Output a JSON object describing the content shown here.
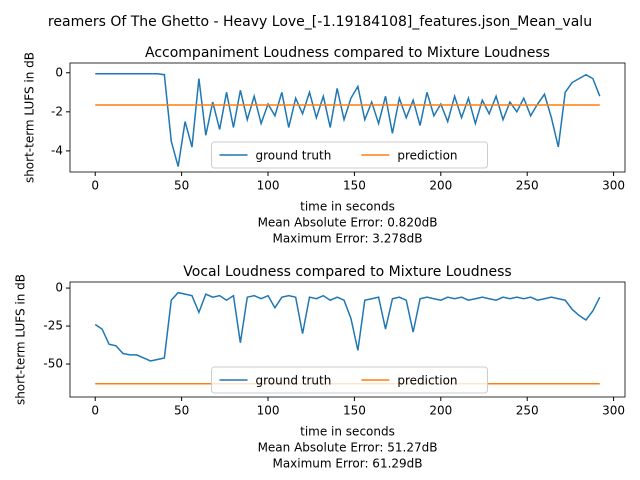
{
  "title": "reamers Of The Ghetto - Heavy Love_[-1.19184108]_features.json_Mean_valu",
  "chart_data": [
    {
      "type": "line",
      "title": "Accompaniment Loudness compared to Mixture Loudness",
      "xlabel": "time in seconds",
      "ylabel": "short-term LUFS in dB",
      "annotations": [
        "Mean Absolute Error: 0.820dB",
        "Maximum Error: 3.278dB"
      ],
      "x": [
        0,
        4,
        8,
        12,
        16,
        20,
        24,
        28,
        32,
        36,
        40,
        44,
        48,
        52,
        56,
        60,
        64,
        68,
        72,
        76,
        80,
        84,
        88,
        92,
        96,
        100,
        104,
        108,
        112,
        116,
        120,
        124,
        128,
        132,
        136,
        140,
        144,
        148,
        152,
        156,
        160,
        164,
        168,
        172,
        176,
        180,
        184,
        188,
        192,
        196,
        200,
        204,
        208,
        212,
        216,
        220,
        224,
        228,
        232,
        236,
        240,
        244,
        248,
        252,
        256,
        260,
        264,
        268,
        272,
        276,
        280,
        284,
        288,
        292
      ],
      "series": [
        {
          "name": "ground truth",
          "color": "#1f77b4",
          "values": [
            -0.05,
            -0.05,
            -0.05,
            -0.05,
            -0.05,
            -0.05,
            -0.05,
            -0.05,
            -0.05,
            -0.05,
            -0.1,
            -3.5,
            -4.8,
            -2.5,
            -3.8,
            -0.3,
            -3.2,
            -1.5,
            -2.9,
            -1.0,
            -2.8,
            -0.9,
            -2.4,
            -1.2,
            -2.6,
            -1.6,
            -2.2,
            -1.0,
            -2.8,
            -1.3,
            -2.1,
            -1.0,
            -2.3,
            -1.2,
            -2.8,
            -0.8,
            -2.4,
            -1.3,
            -0.7,
            -2.4,
            -1.5,
            -2.6,
            -1.2,
            -3.1,
            -1.3,
            -2.3,
            -1.4,
            -2.7,
            -1.0,
            -2.2,
            -1.6,
            -2.5,
            -1.2,
            -2.3,
            -1.3,
            -2.6,
            -1.4,
            -2.1,
            -1.2,
            -2.4,
            -1.5,
            -2.0,
            -1.3,
            -2.2,
            -1.6,
            -1.1,
            -2.3,
            -3.8,
            -1.0,
            -0.5,
            -0.3,
            -0.1,
            -0.3,
            -1.2
          ]
        },
        {
          "name": "prediction",
          "color": "#ff7f0e",
          "values": [
            -1.65,
            -1.65,
            -1.65,
            -1.65,
            -1.65,
            -1.65,
            -1.65,
            -1.65,
            -1.65,
            -1.65,
            -1.65,
            -1.65,
            -1.65,
            -1.65,
            -1.65,
            -1.65,
            -1.65,
            -1.65,
            -1.65,
            -1.65,
            -1.65,
            -1.65,
            -1.65,
            -1.65,
            -1.65,
            -1.65,
            -1.65,
            -1.65,
            -1.65,
            -1.65,
            -1.65,
            -1.65,
            -1.65,
            -1.65,
            -1.65,
            -1.65,
            -1.65,
            -1.65,
            -1.65,
            -1.65,
            -1.65,
            -1.65,
            -1.65,
            -1.65,
            -1.65,
            -1.65,
            -1.65,
            -1.65,
            -1.65,
            -1.65,
            -1.65,
            -1.65,
            -1.65,
            -1.65,
            -1.65,
            -1.65,
            -1.65,
            -1.65,
            -1.65,
            -1.65,
            -1.65,
            -1.65,
            -1.65,
            -1.65,
            -1.65,
            -1.65,
            -1.65,
            -1.65,
            -1.65,
            -1.65,
            -1.65,
            -1.65,
            -1.65,
            -1.65
          ]
        }
      ],
      "xlim": [
        -14.6,
        306.6
      ],
      "xticks": [
        0,
        50,
        100,
        150,
        200,
        250,
        300
      ],
      "ylim": [
        -5.08,
        0.5
      ],
      "yticks": [
        0,
        -2,
        -4
      ],
      "legend": "lower center"
    },
    {
      "type": "line",
      "title": "Vocal Loudness compared to Mixture Loudness",
      "xlabel": "time in seconds",
      "ylabel": "short-term LUFS in dB",
      "annotations": [
        "Mean Absolute Error: 51.27dB",
        "Maximum Error: 61.29dB"
      ],
      "x": [
        0,
        4,
        8,
        12,
        16,
        20,
        24,
        28,
        32,
        36,
        40,
        44,
        48,
        52,
        56,
        60,
        64,
        68,
        72,
        76,
        80,
        84,
        88,
        92,
        96,
        100,
        104,
        108,
        112,
        116,
        120,
        124,
        128,
        132,
        136,
        140,
        144,
        148,
        152,
        156,
        160,
        164,
        168,
        172,
        176,
        180,
        184,
        188,
        192,
        196,
        200,
        204,
        208,
        212,
        216,
        220,
        224,
        228,
        232,
        236,
        240,
        244,
        248,
        252,
        256,
        260,
        264,
        268,
        272,
        276,
        280,
        284,
        288,
        292
      ],
      "series": [
        {
          "name": "ground truth",
          "color": "#1f77b4",
          "values": [
            -24,
            -27,
            -37,
            -38,
            -43,
            -44,
            -44,
            -46,
            -48,
            -47,
            -46,
            -8,
            -3,
            -4,
            -5,
            -16,
            -4,
            -6,
            -5,
            -8,
            -5,
            -36,
            -6,
            -5,
            -7,
            -5,
            -13,
            -6,
            -5,
            -6,
            -30,
            -6,
            -7,
            -5,
            -8,
            -6,
            -8,
            -20,
            -41,
            -8,
            -7,
            -6,
            -27,
            -7,
            -6,
            -8,
            -29,
            -7,
            -6,
            -7,
            -8,
            -6,
            -7,
            -6,
            -8,
            -7,
            -6,
            -7,
            -8,
            -6,
            -7,
            -6,
            -7,
            -6,
            -8,
            -7,
            -6,
            -7,
            -8,
            -14,
            -18,
            -21,
            -15,
            -6
          ]
        },
        {
          "name": "prediction",
          "color": "#ff7f0e",
          "values": [
            -63,
            -63,
            -63,
            -63,
            -63,
            -63,
            -63,
            -63,
            -63,
            -63,
            -63,
            -63,
            -63,
            -63,
            -63,
            -63,
            -63,
            -63,
            -63,
            -63,
            -63,
            -63,
            -63,
            -63,
            -63,
            -63,
            -63,
            -63,
            -63,
            -63,
            -63,
            -63,
            -63,
            -63,
            -63,
            -63,
            -63,
            -63,
            -63,
            -63,
            -63,
            -63,
            -63,
            -63,
            -63,
            -63,
            -63,
            -63,
            -63,
            -63,
            -63,
            -63,
            -63,
            -63,
            -63,
            -63,
            -63,
            -63,
            -63,
            -63,
            -63,
            -63,
            -63,
            -63,
            -63,
            -63,
            -63,
            -63,
            -63,
            -63,
            -63,
            -63,
            -63,
            -63
          ]
        }
      ],
      "xlim": [
        -14.6,
        306.6
      ],
      "xticks": [
        0,
        50,
        100,
        150,
        200,
        250,
        300
      ],
      "ylim": [
        -71.7,
        4
      ],
      "yticks": [
        0,
        -25,
        -50
      ],
      "legend": "lower center"
    }
  ]
}
